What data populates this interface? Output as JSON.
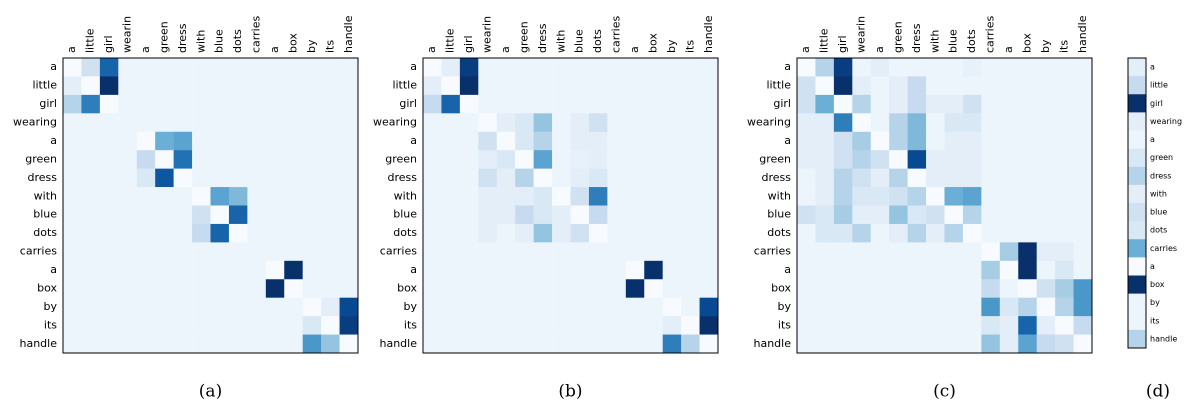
{
  "chart_data": [
    {
      "type": "heatmap",
      "colormap": "Blues",
      "caption": "(a)",
      "x_labels": [
        "a",
        "little",
        "girl",
        "wearin",
        "a",
        "green",
        "dress",
        "with",
        "blue",
        "dots",
        "carries",
        "a",
        "box",
        "by",
        "its",
        "handle"
      ],
      "y_labels": [
        "a",
        "little",
        "girl",
        "wearing",
        "a",
        "green",
        "dress",
        "with",
        "blue",
        "dots",
        "carries",
        "a",
        "box",
        "by",
        "its",
        "handle"
      ],
      "matrix": [
        [
          0,
          0.2,
          0.8,
          0.05,
          0.05,
          0.05,
          0.05,
          0.05,
          0.05,
          0.05,
          0.05,
          0.05,
          0.05,
          0.05,
          0.05,
          0.05
        ],
        [
          0.1,
          0,
          1,
          0.05,
          0.05,
          0.05,
          0.05,
          0.05,
          0.05,
          0.05,
          0.05,
          0.05,
          0.05,
          0.05,
          0.05,
          0.05
        ],
        [
          0.3,
          0.7,
          0,
          0.05,
          0.05,
          0.05,
          0.05,
          0.05,
          0.05,
          0.05,
          0.05,
          0.05,
          0.05,
          0.05,
          0.05,
          0.05
        ],
        [
          0.05,
          0.05,
          0.05,
          0.05,
          0.05,
          0.05,
          0.05,
          0.05,
          0.05,
          0.05,
          0.05,
          0.05,
          0.05,
          0.05,
          0.05,
          0.05
        ],
        [
          0.05,
          0.05,
          0.05,
          0.05,
          0,
          0.5,
          0.55,
          0.05,
          0.05,
          0.05,
          0.05,
          0.05,
          0.05,
          0.05,
          0.05,
          0.05
        ],
        [
          0.05,
          0.05,
          0.05,
          0.05,
          0.25,
          0,
          0.75,
          0.05,
          0.05,
          0.05,
          0.05,
          0.05,
          0.05,
          0.05,
          0.05,
          0.05
        ],
        [
          0.05,
          0.05,
          0.05,
          0.05,
          0.15,
          0.85,
          0,
          0.05,
          0.05,
          0.05,
          0.05,
          0.05,
          0.05,
          0.05,
          0.05,
          0.05
        ],
        [
          0.05,
          0.05,
          0.05,
          0.05,
          0.05,
          0.05,
          0.05,
          0,
          0.55,
          0.45,
          0.05,
          0.05,
          0.05,
          0.05,
          0.05,
          0.05
        ],
        [
          0.05,
          0.05,
          0.05,
          0.05,
          0.05,
          0.05,
          0.05,
          0.2,
          0,
          0.8,
          0.05,
          0.05,
          0.05,
          0.05,
          0.05,
          0.05
        ],
        [
          0.05,
          0.05,
          0.05,
          0.05,
          0.05,
          0.05,
          0.05,
          0.25,
          0.8,
          0,
          0.05,
          0.05,
          0.05,
          0.05,
          0.05,
          0.05
        ],
        [
          0.05,
          0.05,
          0.05,
          0.05,
          0.05,
          0.05,
          0.05,
          0.05,
          0.05,
          0.05,
          0.05,
          0.05,
          0.05,
          0.05,
          0.05,
          0.05
        ],
        [
          0.05,
          0.05,
          0.05,
          0.05,
          0.05,
          0.05,
          0.05,
          0.05,
          0.05,
          0.05,
          0.05,
          0,
          1,
          0.05,
          0.05,
          0.05
        ],
        [
          0.05,
          0.05,
          0.05,
          0.05,
          0.05,
          0.05,
          0.05,
          0.05,
          0.05,
          0.05,
          0.05,
          1,
          0,
          0.05,
          0.05,
          0.05
        ],
        [
          0.05,
          0.05,
          0.05,
          0.05,
          0.05,
          0.05,
          0.05,
          0.05,
          0.05,
          0.05,
          0.05,
          0.05,
          0.05,
          0,
          0.1,
          0.9
        ],
        [
          0.05,
          0.05,
          0.05,
          0.05,
          0.05,
          0.05,
          0.05,
          0.05,
          0.05,
          0.05,
          0.05,
          0.05,
          0.05,
          0.15,
          0,
          0.95
        ],
        [
          0.05,
          0.05,
          0.05,
          0.05,
          0.05,
          0.05,
          0.05,
          0.05,
          0.05,
          0.05,
          0.05,
          0.05,
          0.05,
          0.6,
          0.4,
          0
        ]
      ]
    },
    {
      "type": "heatmap",
      "colormap": "Blues",
      "caption": "(b)",
      "x_labels": [
        "a",
        "little",
        "girl",
        "wearin",
        "a",
        "green",
        "dress",
        "with",
        "blue",
        "dots",
        "carries",
        "a",
        "box",
        "by",
        "its",
        "handle"
      ],
      "y_labels": [
        "a",
        "little",
        "girl",
        "wearing",
        "a",
        "green",
        "dress",
        "with",
        "blue",
        "dots",
        "carries",
        "a",
        "box",
        "by",
        "its",
        "handle"
      ],
      "matrix": [
        [
          0,
          0.1,
          0.95,
          0.05,
          0.05,
          0.05,
          0.05,
          0.05,
          0.05,
          0.05,
          0.05,
          0.05,
          0.05,
          0.05,
          0.05,
          0.05
        ],
        [
          0.1,
          0,
          1,
          0.05,
          0.05,
          0.05,
          0.05,
          0.05,
          0.05,
          0.05,
          0.05,
          0.05,
          0.05,
          0.05,
          0.05,
          0.05
        ],
        [
          0.25,
          0.8,
          0,
          0.05,
          0.05,
          0.05,
          0.05,
          0.05,
          0.05,
          0.05,
          0.05,
          0.05,
          0.05,
          0.05,
          0.05,
          0.05
        ],
        [
          0.05,
          0.05,
          0.05,
          0,
          0.1,
          0.15,
          0.4,
          0.05,
          0.1,
          0.2,
          0.05,
          0.05,
          0.05,
          0.05,
          0.05,
          0.05
        ],
        [
          0.05,
          0.05,
          0.05,
          0.2,
          0,
          0.15,
          0.3,
          0.05,
          0.1,
          0.1,
          0.05,
          0.05,
          0.05,
          0.05,
          0.05,
          0.05
        ],
        [
          0.05,
          0.05,
          0.05,
          0.1,
          0.15,
          0,
          0.55,
          0.05,
          0.08,
          0.1,
          0.05,
          0.05,
          0.05,
          0.05,
          0.05,
          0.05
        ],
        [
          0.05,
          0.05,
          0.05,
          0.2,
          0.1,
          0.3,
          0,
          0.05,
          0.1,
          0.15,
          0.05,
          0.05,
          0.05,
          0.05,
          0.05,
          0.05
        ],
        [
          0.05,
          0.05,
          0.05,
          0.1,
          0.1,
          0.1,
          0.15,
          0,
          0.2,
          0.7,
          0.05,
          0.05,
          0.05,
          0.05,
          0.05,
          0.05
        ],
        [
          0.05,
          0.05,
          0.05,
          0.1,
          0.1,
          0.25,
          0.15,
          0.1,
          0,
          0.25,
          0.05,
          0.05,
          0.05,
          0.05,
          0.05,
          0.05
        ],
        [
          0.05,
          0.05,
          0.05,
          0.1,
          0.05,
          0.1,
          0.4,
          0.1,
          0.2,
          0,
          0.05,
          0.05,
          0.05,
          0.05,
          0.05,
          0.05
        ],
        [
          0.05,
          0.05,
          0.05,
          0.05,
          0.05,
          0.05,
          0.05,
          0.05,
          0.05,
          0.05,
          0.05,
          0.05,
          0.05,
          0.05,
          0.05,
          0.05
        ],
        [
          0.05,
          0.05,
          0.05,
          0.05,
          0.05,
          0.05,
          0.05,
          0.05,
          0.05,
          0.05,
          0.05,
          0,
          1,
          0.05,
          0.05,
          0.05
        ],
        [
          0.05,
          0.05,
          0.05,
          0.05,
          0.05,
          0.05,
          0.05,
          0.05,
          0.05,
          0.05,
          0.05,
          1,
          0,
          0.05,
          0.05,
          0.05
        ],
        [
          0.05,
          0.05,
          0.05,
          0.05,
          0.05,
          0.05,
          0.05,
          0.05,
          0.05,
          0.05,
          0.05,
          0.05,
          0.05,
          0,
          0.05,
          0.9
        ],
        [
          0.05,
          0.05,
          0.05,
          0.05,
          0.05,
          0.05,
          0.05,
          0.05,
          0.05,
          0.05,
          0.05,
          0.05,
          0.05,
          0.1,
          0,
          1
        ],
        [
          0.05,
          0.05,
          0.05,
          0.05,
          0.05,
          0.05,
          0.05,
          0.05,
          0.05,
          0.05,
          0.05,
          0.05,
          0.05,
          0.7,
          0.3,
          0
        ]
      ]
    },
    {
      "type": "heatmap",
      "colormap": "Blues",
      "caption": "(c)",
      "x_labels": [
        "a",
        "little",
        "girl",
        "wearin",
        "a",
        "green",
        "dress",
        "with",
        "blue",
        "dots",
        "carries",
        "a",
        "box",
        "by",
        "its",
        "handle"
      ],
      "y_labels": [
        "a",
        "little",
        "girl",
        "wearing",
        "a",
        "green",
        "dress",
        "with",
        "blue",
        "dots",
        "carries",
        "a",
        "box",
        "by",
        "its",
        "handle"
      ],
      "matrix": [
        [
          0,
          0.3,
          0.95,
          0.05,
          0.1,
          0.05,
          0.05,
          0.05,
          0.05,
          0.08,
          0.05,
          0.05,
          0.05,
          0.05,
          0.05,
          0.05
        ],
        [
          0.2,
          0,
          1,
          0.1,
          0.05,
          0.1,
          0.25,
          0.05,
          0.05,
          0.05,
          0.05,
          0.05,
          0.05,
          0.05,
          0.05,
          0.05
        ],
        [
          0.2,
          0.5,
          0,
          0.3,
          0.05,
          0.1,
          0.25,
          0.1,
          0.1,
          0.2,
          0.05,
          0.05,
          0.05,
          0.05,
          0.05,
          0.05
        ],
        [
          0.1,
          0.1,
          0.7,
          0,
          0.05,
          0.3,
          0.45,
          0.05,
          0.15,
          0.15,
          0.05,
          0.05,
          0.05,
          0.05,
          0.05,
          0.05
        ],
        [
          0.1,
          0.1,
          0.2,
          0.35,
          0,
          0.3,
          0.45,
          0.05,
          0.1,
          0.1,
          0.05,
          0.05,
          0.05,
          0.05,
          0.05,
          0.05
        ],
        [
          0.1,
          0.1,
          0.2,
          0.3,
          0.2,
          0,
          0.9,
          0.1,
          0.1,
          0.1,
          0.05,
          0.05,
          0.05,
          0.05,
          0.05,
          0.05
        ],
        [
          0.05,
          0.1,
          0.3,
          0.2,
          0.1,
          0.3,
          0,
          0.1,
          0.1,
          0.1,
          0.05,
          0.05,
          0.05,
          0.05,
          0.05,
          0.05
        ],
        [
          0.05,
          0.1,
          0.3,
          0.15,
          0.15,
          0.2,
          0.3,
          0,
          0.5,
          0.55,
          0.05,
          0.05,
          0.05,
          0.05,
          0.05,
          0.05
        ],
        [
          0.2,
          0.15,
          0.35,
          0.1,
          0.1,
          0.4,
          0.15,
          0.2,
          0,
          0.3,
          0.05,
          0.05,
          0.05,
          0.05,
          0.05,
          0.05
        ],
        [
          0.05,
          0.15,
          0.15,
          0.3,
          0.05,
          0.1,
          0.3,
          0.1,
          0.3,
          0,
          0.05,
          0.05,
          0.05,
          0.05,
          0.05,
          0.05
        ],
        [
          0.05,
          0.05,
          0.05,
          0.05,
          0.05,
          0.05,
          0.05,
          0.05,
          0.05,
          0.05,
          0,
          0.35,
          1,
          0.1,
          0.1,
          0.05
        ],
        [
          0.05,
          0.05,
          0.05,
          0.05,
          0.05,
          0.05,
          0.05,
          0.05,
          0.05,
          0.05,
          0.35,
          0,
          1,
          0.05,
          0.15,
          0.05
        ],
        [
          0.05,
          0.05,
          0.05,
          0.05,
          0.05,
          0.05,
          0.05,
          0.05,
          0.05,
          0.05,
          0.25,
          0.05,
          0,
          0.2,
          0.35,
          0.6
        ],
        [
          0.05,
          0.05,
          0.05,
          0.05,
          0.05,
          0.05,
          0.05,
          0.05,
          0.05,
          0.05,
          0.6,
          0.15,
          0.3,
          0,
          0.3,
          0.6
        ],
        [
          0.05,
          0.05,
          0.05,
          0.05,
          0.05,
          0.05,
          0.05,
          0.05,
          0.05,
          0.05,
          0.15,
          0.1,
          0.8,
          0.1,
          0,
          0.25
        ],
        [
          0.05,
          0.05,
          0.05,
          0.05,
          0.05,
          0.05,
          0.05,
          0.05,
          0.05,
          0.05,
          0.4,
          0.1,
          0.55,
          0.25,
          0.2,
          0
        ]
      ]
    },
    {
      "type": "strip",
      "colormap": "Blues",
      "caption": "(d)",
      "labels": [
        "a",
        "little",
        "girl",
        "wearing",
        "a",
        "green",
        "dress",
        "with",
        "blue",
        "dots",
        "carries",
        "a",
        "box",
        "by",
        "its",
        "handle"
      ],
      "values": [
        0.1,
        0.25,
        1,
        0.1,
        0.05,
        0.15,
        0.3,
        0.1,
        0.2,
        0.15,
        0.5,
        0,
        1,
        0.05,
        0.05,
        0.3
      ]
    }
  ]
}
